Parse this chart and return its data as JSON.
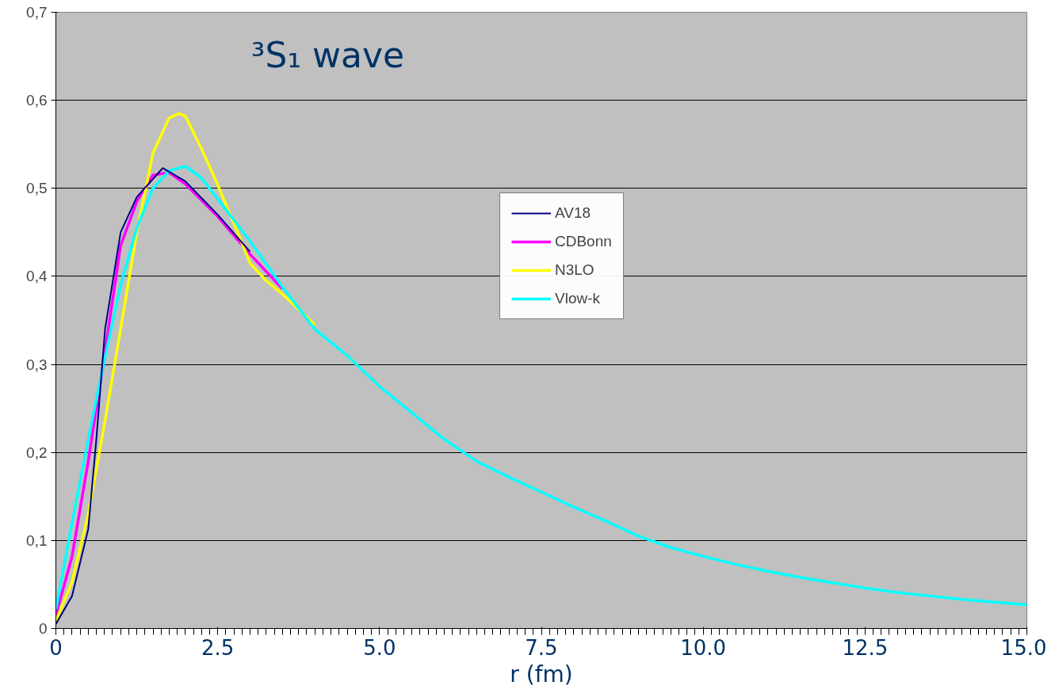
{
  "chart_data": {
    "type": "line",
    "title": "³S₁ wave",
    "xlabel": "r (fm)",
    "xlim": [
      0,
      15
    ],
    "ylim": [
      0,
      0.7
    ],
    "xticks": [
      0,
      {
        "value": 2.5,
        "label": "2.5"
      },
      {
        "value": 5,
        "label": "5.0"
      },
      {
        "value": 7.5,
        "label": "7.5"
      },
      {
        "value": 10,
        "label": "10.0"
      },
      {
        "value": 12.5,
        "label": "12.5"
      },
      {
        "value": 15,
        "label": "15.0"
      }
    ],
    "yticks": [
      0,
      {
        "value": 0.1,
        "label": "0,1"
      },
      {
        "value": 0.2,
        "label": "0,2"
      },
      {
        "value": 0.3,
        "label": "0,3"
      },
      {
        "value": 0.4,
        "label": "0,4"
      },
      {
        "value": 0.5,
        "label": "0,5"
      },
      {
        "value": 0.6,
        "label": "0,6"
      },
      {
        "value": 0.7,
        "label": "0,7"
      }
    ],
    "grid": "y",
    "legend": "top right",
    "series": [
      {
        "name": "AV18",
        "color": "#000080",
        "x": [
          0,
          0.25,
          0.5,
          0.625,
          0.76,
          1.0,
          1.25,
          1.65,
          2.0,
          2.5,
          3.0
        ],
        "values": [
          0.005,
          0.037,
          0.113,
          0.215,
          0.34,
          0.45,
          0.49,
          0.523,
          0.508,
          0.47,
          0.428
        ]
      },
      {
        "name": "CDBonn",
        "color": "#ff00ff",
        "x": [
          0,
          0.25,
          0.5,
          0.75,
          1.0,
          1.25,
          1.5,
          1.75,
          2.0,
          2.5,
          3.0,
          3.5
        ],
        "values": [
          0.015,
          0.082,
          0.19,
          0.31,
          0.435,
          0.485,
          0.515,
          0.518,
          0.505,
          0.468,
          0.425,
          0.386
        ]
      },
      {
        "name": "N3LO",
        "color": "#ffff00",
        "x": [
          0,
          0.25,
          0.5,
          0.75,
          1.0,
          1.25,
          1.5,
          1.75,
          1.9,
          2.0,
          2.25,
          2.5,
          2.75,
          3.0,
          3.25,
          3.5,
          4
        ],
        "values": [
          0.008,
          0.053,
          0.13,
          0.232,
          0.34,
          0.45,
          0.54,
          0.58,
          0.585,
          0.582,
          0.545,
          0.504,
          0.46,
          0.415,
          0.395,
          0.38,
          0.345
        ]
      },
      {
        "name": "Vlow-k",
        "color": "#00ffff",
        "x": [
          0,
          0.25,
          0.5,
          0.75,
          1.0,
          1.25,
          1.5,
          1.75,
          2.0,
          2.25,
          2.5,
          3.0,
          3.5,
          4,
          4.5,
          5,
          5.5,
          6,
          6.5,
          7,
          7.5,
          8,
          8.5,
          9,
          9.5,
          10,
          10.5,
          11,
          11.5,
          12,
          12.5,
          13,
          13.5,
          14,
          14.5,
          15
        ],
        "values": [
          0.022,
          0.12,
          0.215,
          0.305,
          0.39,
          0.455,
          0.5,
          0.52,
          0.525,
          0.512,
          0.488,
          0.44,
          0.388,
          0.34,
          0.31,
          0.275,
          0.245,
          0.215,
          0.19,
          0.172,
          0.155,
          0.138,
          0.122,
          0.105,
          0.092,
          0.082,
          0.073,
          0.065,
          0.058,
          0.052,
          0.046,
          0.041,
          0.037,
          0.033,
          0.03,
          0.027
        ]
      }
    ]
  }
}
